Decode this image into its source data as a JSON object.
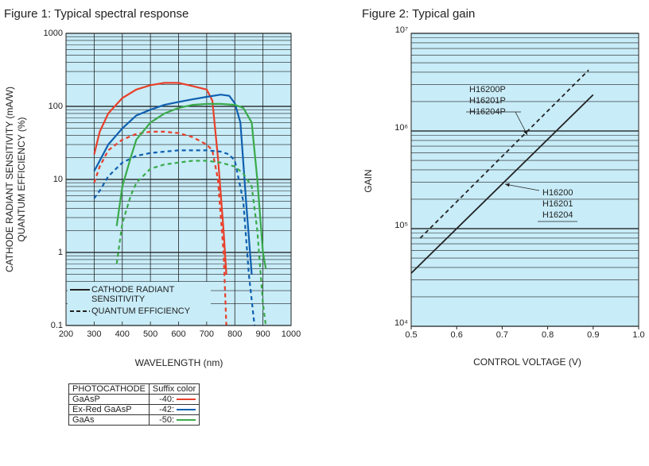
{
  "chart_data": [
    {
      "type": "line",
      "title": "Figure 1: Typical spectral response",
      "x_label": "WAVELENGTH (nm)",
      "y_labels": [
        "CATHODE RADIANT SENSITIVITY (mA/W)",
        "QUANTUM EFFICIENCY (%)"
      ],
      "xlim": [
        200,
        1000
      ],
      "xticks": [
        200,
        300,
        400,
        500,
        600,
        700,
        800,
        900,
        1000
      ],
      "ylim": [
        0.1,
        1000
      ],
      "yticks": [
        0.1,
        1,
        10,
        100,
        1000
      ],
      "log_y": true,
      "xgrid": true,
      "ygrid": true,
      "background": "#c8ecf8",
      "measures": [
        {
          "name": "CATHODE RADIANT SENSITIVITY",
          "dash": "solid"
        },
        {
          "name": "QUANTUM EFFICIENCY",
          "dash": "dashed"
        }
      ],
      "table_header": [
        "PHOTOCATHODE",
        "Suffix color"
      ],
      "series": [
        {
          "name": "GaAsP",
          "suffix": "-40:",
          "color": "#e8402a",
          "x": [
            300,
            320,
            350,
            400,
            450,
            500,
            550,
            600,
            650,
            700,
            720,
            740,
            760,
            770
          ],
          "values": [
            22,
            45,
            80,
            130,
            170,
            195,
            210,
            210,
            190,
            170,
            120,
            20,
            2,
            0.5
          ],
          "qe_x": [
            300,
            320,
            350,
            400,
            450,
            500,
            550,
            600,
            650,
            700,
            720,
            740,
            760,
            770
          ],
          "qe_values": [
            9,
            15,
            25,
            35,
            42,
            45,
            45,
            43,
            38,
            30,
            25,
            10,
            1,
            0.1
          ]
        },
        {
          "name": "Ex-Red GaAsP",
          "suffix": "-42:",
          "color": "#1060b0",
          "x": [
            300,
            320,
            350,
            400,
            450,
            500,
            550,
            600,
            650,
            700,
            750,
            780,
            800,
            820,
            840,
            860
          ],
          "values": [
            13,
            18,
            30,
            50,
            75,
            90,
            105,
            115,
            125,
            135,
            145,
            140,
            110,
            60,
            5,
            0.5
          ],
          "qe_x": [
            300,
            320,
            350,
            400,
            450,
            500,
            550,
            600,
            650,
            700,
            750,
            780,
            800,
            830,
            850,
            870
          ],
          "qe_values": [
            5.5,
            7,
            11,
            17,
            21,
            23,
            24,
            25,
            25,
            25,
            24,
            22,
            18,
            5,
            0.5,
            0.1
          ]
        },
        {
          "name": "GaAs",
          "suffix": "-50:",
          "color": "#3aaa4a",
          "x": [
            380,
            400,
            430,
            450,
            500,
            550,
            600,
            650,
            700,
            750,
            800,
            830,
            860,
            880,
            900,
            910
          ],
          "values": [
            2.3,
            8,
            20,
            35,
            60,
            80,
            95,
            105,
            108,
            108,
            105,
            95,
            60,
            10,
            1,
            0.6
          ],
          "qe_x": [
            380,
            400,
            430,
            450,
            500,
            550,
            600,
            650,
            700,
            750,
            800,
            830,
            860,
            880,
            900,
            910
          ],
          "qe_values": [
            0.7,
            2.5,
            6,
            9,
            14,
            16,
            17,
            18,
            18,
            17,
            15,
            12,
            8,
            2,
            0.2,
            0.1
          ]
        }
      ]
    },
    {
      "type": "line",
      "title": "Figure 2: Typical gain",
      "x_label": "CONTROL VOLTAGE (V)",
      "y_labels": [
        "GAIN"
      ],
      "xlim": [
        0.5,
        1.0
      ],
      "xticks": [
        0.5,
        0.6,
        0.7,
        0.8,
        0.9,
        {
          "value": 1.0,
          "label": "1.0"
        }
      ],
      "ylim": [
        10000,
        10000000
      ],
      "yticks": [
        {
          "value": 10000,
          "label": "10⁴"
        },
        {
          "value": 100000,
          "label": "10⁵"
        },
        {
          "value": 1000000,
          "label": "10⁶"
        },
        {
          "value": 10000000,
          "label": "10⁷"
        }
      ],
      "log_y": true,
      "xgrid": false,
      "ygrid": true,
      "background": "#c8ecf8",
      "series": [
        {
          "labels": [
            "H16200P",
            "H16201P",
            "H16204P"
          ],
          "color": "#222222",
          "dash": "dashed",
          "x": [
            0.52,
            0.89
          ],
          "values": [
            80000,
            4200000
          ]
        },
        {
          "labels": [
            "H16200",
            "H16201",
            "H16204"
          ],
          "color": "#222222",
          "dash": "solid",
          "x": [
            0.5,
            0.9
          ],
          "values": [
            35000,
            2350000
          ]
        }
      ]
    }
  ]
}
